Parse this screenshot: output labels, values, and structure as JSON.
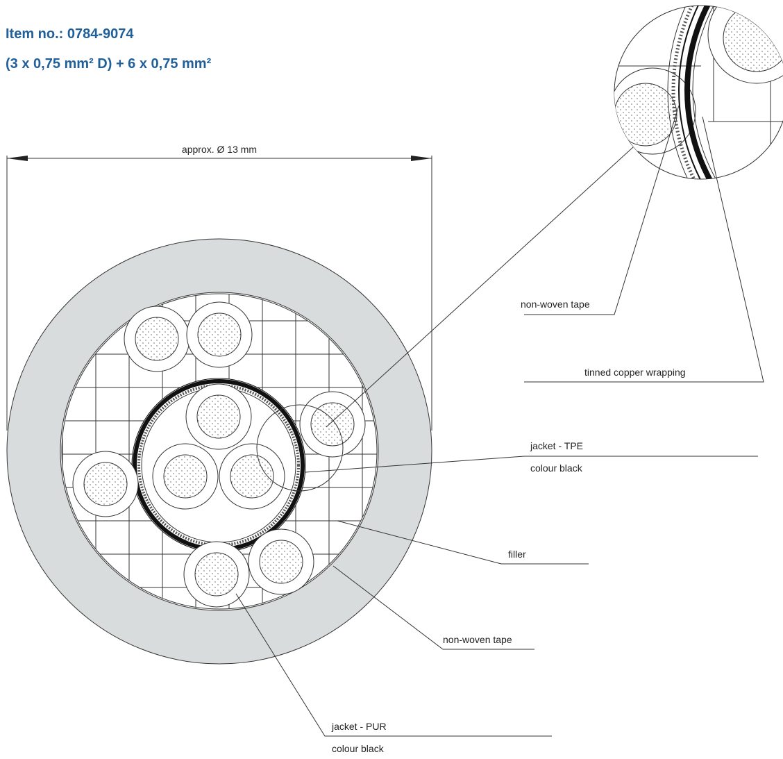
{
  "header": {
    "item_no": "Item no.: 0784-9074",
    "spec": "(3 x 0,75 mm² D) + 6 x 0,75 mm²"
  },
  "dimension": "approx. Ø 13 mm",
  "labels": [
    {
      "text": "non-woven tape"
    },
    {
      "text": "tinned copper wrapping"
    },
    {
      "text": "jacket - TPE",
      "sub": "colour black"
    },
    {
      "text": "filler"
    },
    {
      "text": "non-woven tape"
    },
    {
      "text": "jacket - PUR",
      "sub": "colour black"
    }
  ]
}
